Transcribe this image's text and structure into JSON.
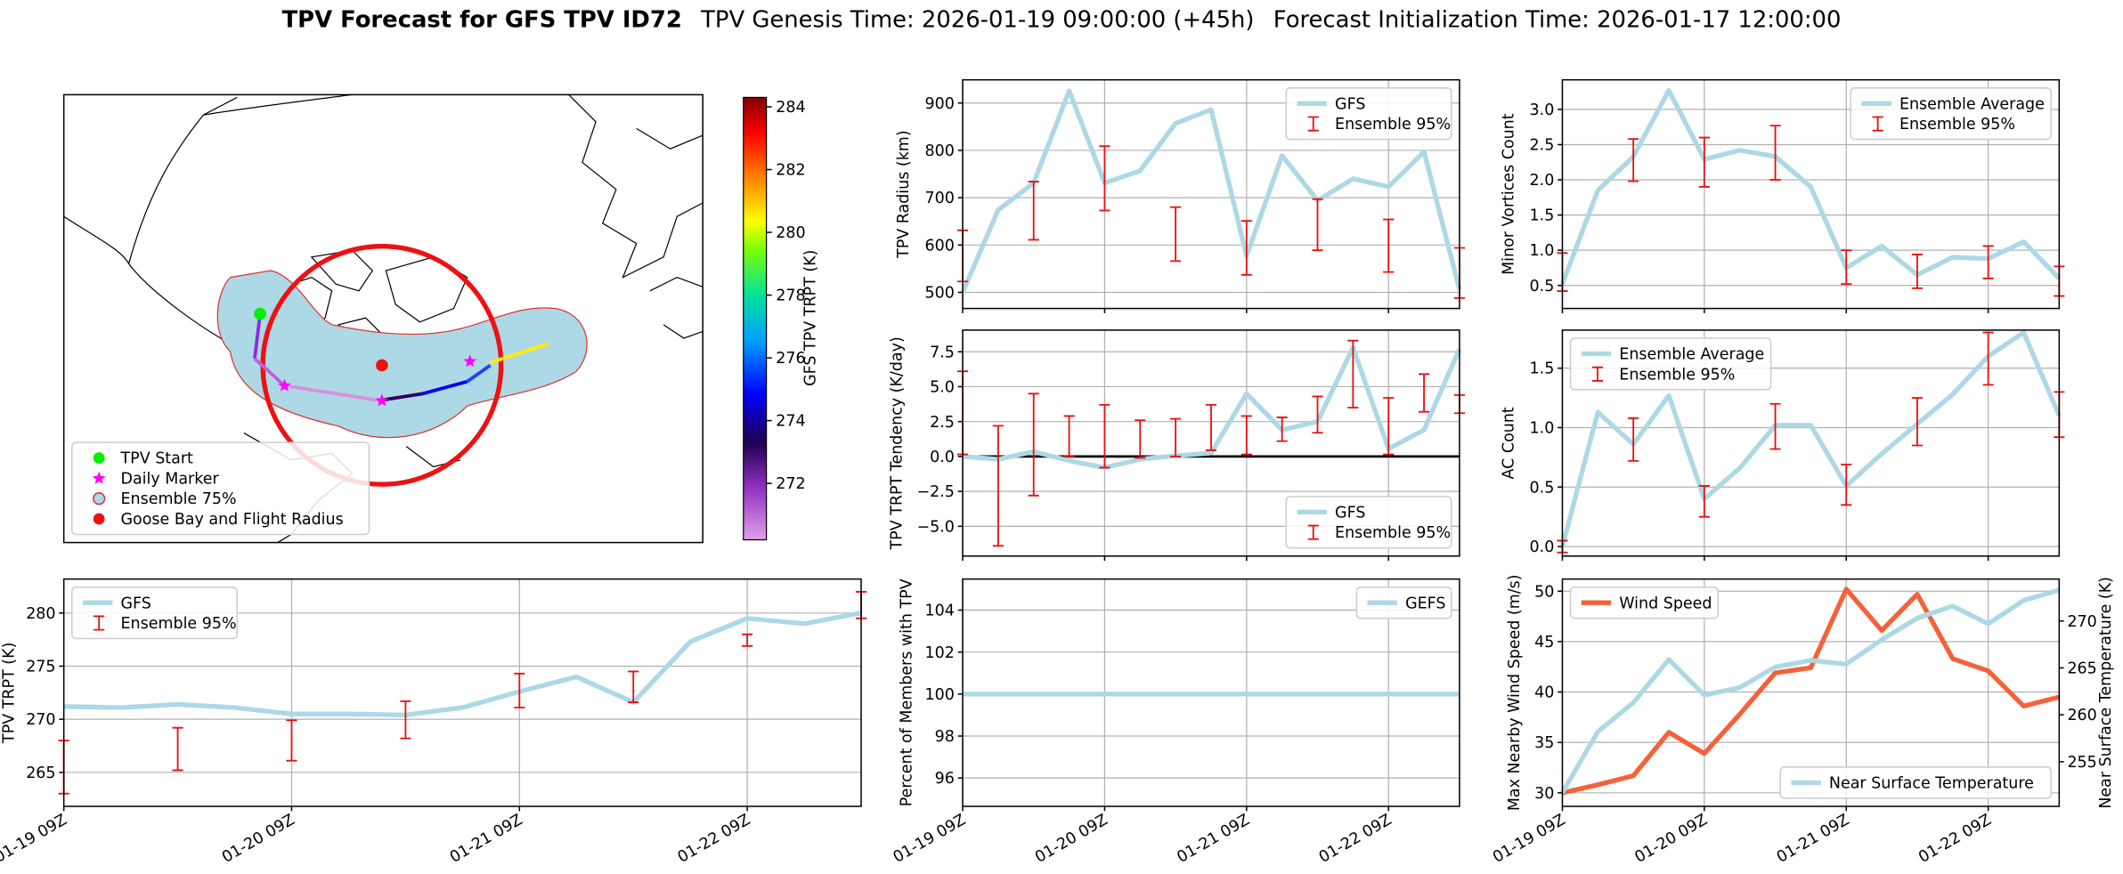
{
  "figure": {
    "title": "TPV Forecast for GFS TPV ID72",
    "genesis": "TPV Genesis Time: 2026-01-19 09:00:00 (+45h)",
    "init": "Forecast Initialization Time: 2026-01-17 12:00:00"
  },
  "chart_data": [
    {
      "type": "map",
      "colorbar_label": "GFS TPV TRPT (K)",
      "clim": [
        270.2,
        284.3
      ],
      "cticks": [
        272,
        274,
        276,
        278,
        280,
        282,
        284
      ],
      "legend_corner": "lower left",
      "legend": [
        {
          "name": "TPV Start",
          "color": "#00ee00",
          "marker": "circle"
        },
        {
          "name": "Daily Marker",
          "color": "#ff00ff",
          "marker": "star"
        },
        {
          "name": "Ensemble 75%",
          "color": "#add8e6",
          "edge": "#e03030",
          "marker": "circle"
        },
        {
          "name": "Goose Bay and Flight Radius",
          "color": "#ee1111",
          "marker": "circle"
        }
      ]
    },
    {
      "type": "line",
      "ylabel": "TPV Radius (km)",
      "x": [
        "01-19 09Z",
        "01-19 15Z",
        "01-19 21Z",
        "01-20 03Z",
        "01-20 09Z",
        "01-20 15Z",
        "01-20 21Z",
        "01-21 03Z",
        "01-21 09Z",
        "01-21 15Z",
        "01-21 21Z",
        "01-22 03Z",
        "01-22 09Z",
        "01-22 15Z",
        "01-22 21Z"
      ],
      "xlim": [
        "01-19 09Z",
        "01-22 21Z"
      ],
      "xticks": [
        "01-19 09Z",
        "01-20 09Z",
        "01-21 09Z",
        "01-22 09Z"
      ],
      "xticklabels": false,
      "ylim": [
        466,
        949
      ],
      "yticks": [
        500,
        600,
        700,
        800,
        900
      ],
      "grid": true,
      "legend": "upper right",
      "series": [
        {
          "name": "GFS",
          "type": "line",
          "color": "#add8e6",
          "values": [
            500,
            674,
            731,
            926,
            731,
            757,
            857,
            886,
            577,
            789,
            694,
            740,
            723,
            797,
            506
          ]
        },
        {
          "name": "Ensemble 95%",
          "type": "errorbar",
          "color": "#e81010",
          "low": [
            523,
            null,
            611,
            null,
            673,
            null,
            566,
            null,
            537,
            null,
            589,
            null,
            543,
            null,
            488
          ],
          "high": [
            631,
            null,
            734,
            null,
            809,
            null,
            680,
            null,
            651,
            null,
            697,
            null,
            654,
            null,
            594
          ]
        }
      ]
    },
    {
      "type": "line",
      "ylabel": "TPV TRPT Tendency (K/day)",
      "x": [
        "01-19 09Z",
        "01-19 15Z",
        "01-19 21Z",
        "01-20 03Z",
        "01-20 09Z",
        "01-20 15Z",
        "01-20 21Z",
        "01-21 03Z",
        "01-21 09Z",
        "01-21 15Z",
        "01-21 21Z",
        "01-22 03Z",
        "01-22 09Z",
        "01-22 15Z",
        "01-22 21Z"
      ],
      "xlim": [
        "01-19 09Z",
        "01-22 21Z"
      ],
      "xticks": [
        "01-19 09Z",
        "01-20 09Z",
        "01-21 09Z",
        "01-22 09Z"
      ],
      "xticklabels": false,
      "ylim": [
        -7.13,
        9.05
      ],
      "yticks": [
        {
          "value": -5,
          "label": "−5.0"
        },
        {
          "value": -2.5,
          "label": "−2.5"
        },
        {
          "value": 0,
          "label": "0.0"
        },
        {
          "value": 2.5,
          "label": "2.5"
        },
        {
          "value": 5,
          "label": "5.0"
        },
        {
          "value": 7.5,
          "label": "7.5"
        }
      ],
      "grid": true,
      "legend": "lower right",
      "hline": 0,
      "series": [
        {
          "name": "GFS",
          "type": "line",
          "color": "#add8e6",
          "values": [
            0,
            -0.2,
            0.35,
            -0.3,
            -0.8,
            -0.2,
            0.05,
            0.25,
            4.5,
            1.9,
            2.5,
            7.8,
            0.55,
            1.9,
            7.7
          ]
        },
        {
          "name": "Ensemble 95%",
          "type": "errorbar",
          "color": "#e81010",
          "low": [
            0.15,
            -6.4,
            -2.8,
            0,
            -0.8,
            -0.1,
            0,
            0.45,
            0.15,
            1.1,
            1.7,
            3.5,
            0.15,
            3.2,
            3.1
          ],
          "high": [
            6.1,
            2.2,
            4.5,
            2.9,
            3.7,
            2.6,
            2.7,
            3.7,
            2.9,
            2.8,
            4.3,
            8.3,
            4.2,
            5.9,
            4.4
          ]
        }
      ]
    },
    {
      "type": "line",
      "ylabel": "Percent of Members with TPV",
      "x": [
        "01-19 09Z",
        "01-19 15Z",
        "01-19 21Z",
        "01-20 03Z",
        "01-20 09Z",
        "01-20 15Z",
        "01-20 21Z",
        "01-21 03Z",
        "01-21 09Z",
        "01-21 15Z",
        "01-21 21Z",
        "01-22 03Z",
        "01-22 09Z",
        "01-22 15Z",
        "01-22 21Z"
      ],
      "xlim": [
        "01-19 09Z",
        "01-22 21Z"
      ],
      "xticks": [
        "01-19 09Z",
        "01-20 09Z",
        "01-21 09Z",
        "01-22 09Z"
      ],
      "xticklabels": true,
      "ylim": [
        94.65,
        105.48
      ],
      "yticks": [
        96,
        98,
        100,
        102,
        104
      ],
      "grid": true,
      "legend": "upper right",
      "series": [
        {
          "name": "GEFS",
          "type": "line",
          "color": "#add8e6",
          "values": [
            100,
            100,
            100,
            100,
            100,
            100,
            100,
            100,
            100,
            100,
            100,
            100,
            100,
            100,
            100
          ]
        }
      ]
    },
    {
      "type": "line",
      "ylabel": "Minor Vortices Count",
      "x": [
        "01-19 09Z",
        "01-19 15Z",
        "01-19 21Z",
        "01-20 03Z",
        "01-20 09Z",
        "01-20 15Z",
        "01-20 21Z",
        "01-21 03Z",
        "01-21 09Z",
        "01-21 15Z",
        "01-21 21Z",
        "01-22 03Z",
        "01-22 09Z",
        "01-22 15Z",
        "01-22 21Z"
      ],
      "xlim": [
        "01-19 09Z",
        "01-22 21Z"
      ],
      "xticks": [
        "01-19 09Z",
        "01-20 09Z",
        "01-21 09Z",
        "01-22 09Z"
      ],
      "xticklabels": false,
      "ylim": [
        0.173,
        3.42
      ],
      "yticks": [
        0.5,
        {
          "value": 1,
          "label": "1.0"
        },
        1.5,
        {
          "value": 2,
          "label": "2.0"
        },
        2.5,
        {
          "value": 3,
          "label": "3.0"
        }
      ],
      "grid": true,
      "legend": "upper right",
      "series": [
        {
          "name": "Ensemble Average",
          "type": "line",
          "color": "#add8e6",
          "values": [
            0.52,
            1.85,
            2.33,
            3.27,
            2.29,
            2.42,
            2.33,
            1.9,
            0.75,
            1.06,
            0.65,
            0.9,
            0.88,
            1.12,
            0.6
          ]
        },
        {
          "name": "Ensemble 95%",
          "type": "errorbar",
          "color": "#e81010",
          "low": [
            0.42,
            null,
            1.98,
            null,
            1.9,
            null,
            2.0,
            null,
            0.52,
            null,
            0.46,
            null,
            0.6,
            null,
            0.35
          ],
          "high": [
            0.96,
            null,
            2.58,
            null,
            2.6,
            null,
            2.77,
            null,
            1.0,
            null,
            0.94,
            null,
            1.06,
            null,
            0.77
          ]
        }
      ]
    },
    {
      "type": "line",
      "ylabel": "AC Count",
      "x": [
        "01-19 09Z",
        "01-19 15Z",
        "01-19 21Z",
        "01-20 03Z",
        "01-20 09Z",
        "01-20 15Z",
        "01-20 21Z",
        "01-21 03Z",
        "01-21 09Z",
        "01-21 15Z",
        "01-21 21Z",
        "01-22 03Z",
        "01-22 09Z",
        "01-22 15Z",
        "01-22 21Z"
      ],
      "xlim": [
        "01-19 09Z",
        "01-22 21Z"
      ],
      "xticks": [
        "01-19 09Z",
        "01-20 09Z",
        "01-21 09Z",
        "01-22 09Z"
      ],
      "xticklabels": false,
      "ylim": [
        -0.08,
        1.82
      ],
      "yticks": [
        {
          "value": 0,
          "label": "0.0"
        },
        0.5,
        {
          "value": 1,
          "label": "1.0"
        },
        1.5
      ],
      "grid": true,
      "legend": "upper left",
      "series": [
        {
          "name": "Ensemble Average",
          "type": "line",
          "color": "#add8e6",
          "values": [
            0,
            1.13,
            0.86,
            1.27,
            0.4,
            0.66,
            1.02,
            1.02,
            0.51,
            0.78,
            1.03,
            1.28,
            1.6,
            1.8,
            1.1
          ]
        },
        {
          "name": "Ensemble 95%",
          "type": "errorbar",
          "color": "#e81010",
          "low": [
            -0.05,
            null,
            0.72,
            null,
            0.25,
            null,
            0.82,
            null,
            0.35,
            null,
            0.85,
            null,
            1.36,
            null,
            0.92
          ],
          "high": [
            0.05,
            null,
            1.08,
            null,
            0.51,
            null,
            1.2,
            null,
            0.69,
            null,
            1.25,
            null,
            1.8,
            null,
            1.3
          ]
        }
      ]
    },
    {
      "type": "line",
      "ylabel": "Max Nearby Wind Speed (m/s)",
      "y2label": "Near Surface Temperature (K)",
      "y_color": "#f4623a",
      "y2_color": "#4169e1",
      "x": [
        "01-19 09Z",
        "01-19 15Z",
        "01-19 21Z",
        "01-20 03Z",
        "01-20 09Z",
        "01-20 15Z",
        "01-20 21Z",
        "01-21 03Z",
        "01-21 09Z",
        "01-21 15Z",
        "01-21 21Z",
        "01-22 03Z",
        "01-22 09Z",
        "01-22 15Z",
        "01-22 21Z"
      ],
      "xlim": [
        "01-19 09Z",
        "01-22 21Z"
      ],
      "xticks": [
        "01-19 09Z",
        "01-20 09Z",
        "01-21 09Z",
        "01-22 09Z"
      ],
      "xticklabels": true,
      "ylim": [
        28.66,
        51.2
      ],
      "yticks": [
        30,
        35,
        40,
        45,
        50
      ],
      "y2lim": [
        250.24,
        274.47
      ],
      "y2ticks": [
        255,
        260,
        265,
        270
      ],
      "grid": true,
      "legend": "upper left",
      "legend2": "lower right",
      "series": [
        {
          "name": "Wind Speed",
          "type": "line",
          "color": "#f4623a",
          "values": [
            30,
            30.8,
            31.7,
            36,
            33.9,
            37.8,
            41.9,
            42.4,
            50.2,
            46.1,
            49.7,
            43.3,
            42.1,
            38.6,
            39.5
          ]
        },
        {
          "name": "Near Surface Temperature",
          "type": "line",
          "axis": "y2",
          "color": "#add8e6",
          "values": [
            251.7,
            258.2,
            261.3,
            265.9,
            262.1,
            262.9,
            265.1,
            265.8,
            265.4,
            268,
            270.3,
            271.6,
            269.7,
            272.2,
            273.3
          ]
        }
      ]
    },
    {
      "type": "line",
      "ylabel": "TPV TRPT (K)",
      "x": [
        "01-19 09Z",
        "01-19 15Z",
        "01-19 21Z",
        "01-20 03Z",
        "01-20 09Z",
        "01-20 15Z",
        "01-20 21Z",
        "01-21 03Z",
        "01-21 09Z",
        "01-21 15Z",
        "01-21 21Z",
        "01-22 03Z",
        "01-22 09Z",
        "01-22 15Z",
        "01-22 21Z"
      ],
      "xlim": [
        "01-19 09Z",
        "01-22 21Z"
      ],
      "xticks": [
        "01-19 09Z",
        "01-20 09Z",
        "01-21 09Z",
        "01-22 09Z"
      ],
      "xticklabels": true,
      "ylim": [
        261.8,
        283.2
      ],
      "yticks": [
        265,
        270,
        275,
        280
      ],
      "grid": true,
      "legend": "upper left",
      "series": [
        {
          "name": "GFS",
          "type": "line",
          "color": "#add8e6",
          "values": [
            271.2,
            271.1,
            271.4,
            271.1,
            270.5,
            270.5,
            270.4,
            271.1,
            272.6,
            274,
            271.6,
            277.3,
            279.5,
            279,
            280
          ]
        },
        {
          "name": "Ensemble 95%",
          "type": "errorbar",
          "color": "#e81010",
          "low": [
            263,
            null,
            265.2,
            null,
            266.1,
            null,
            268.2,
            null,
            271.1,
            null,
            271.6,
            null,
            276.9,
            null,
            279.5
          ],
          "high": [
            268,
            null,
            269.2,
            null,
            269.9,
            null,
            271.7,
            null,
            274.3,
            null,
            274.5,
            null,
            278,
            null,
            282
          ]
        }
      ]
    }
  ]
}
